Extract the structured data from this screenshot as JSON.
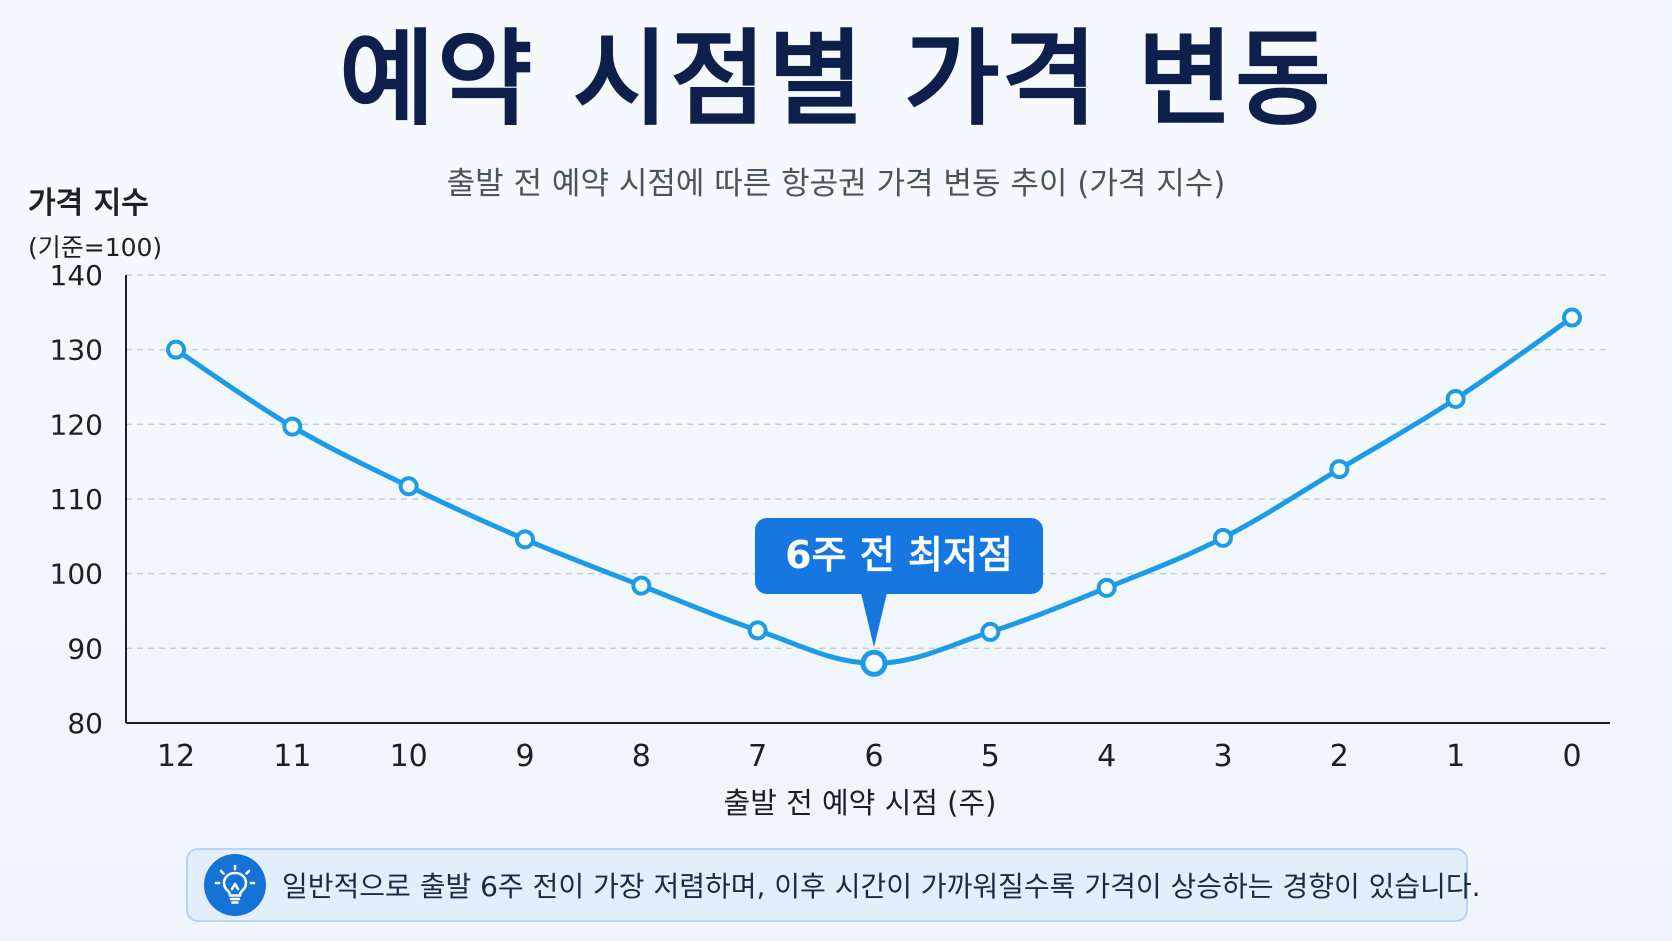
{
  "chart_data": {
    "type": "line",
    "title": "예약 시점별 가격 변동",
    "subtitle": "출발 전 예약 시점에 따른 항공권 가격 변동 추이 (가격 지수)",
    "ylabel": "가격 지수",
    "ylabel_sub": "(기준=100)",
    "xlabel": "출발 전 예약 시점 (주)",
    "ylim": [
      80,
      140
    ],
    "yticks": [
      "80",
      "90",
      "100",
      "110",
      "120",
      "130",
      "140"
    ],
    "categories": [
      "12",
      "11",
      "10",
      "9",
      "8",
      "7",
      "6",
      "5",
      "4",
      "3",
      "2",
      "1",
      "0"
    ],
    "series": [
      {
        "values": [
          130,
          119.7,
          111.7,
          104.6,
          98.4,
          92.4,
          88,
          92.2,
          98.1,
          104.8,
          114,
          123.4,
          134.3
        ]
      }
    ],
    "grid": "horizontal-dashed",
    "line_color": "#1e9be6",
    "annotation": {
      "text": "6주 전 최저점",
      "category": "6",
      "value": 88,
      "color": "#1677e0"
    }
  },
  "note": {
    "icon": "lightbulb-icon",
    "text": "일반적으로 출발 6주 전이 가장 저렴하며, 이후 시간이 가까워질수록 가격이 상승하는 경향이 있습니다."
  }
}
